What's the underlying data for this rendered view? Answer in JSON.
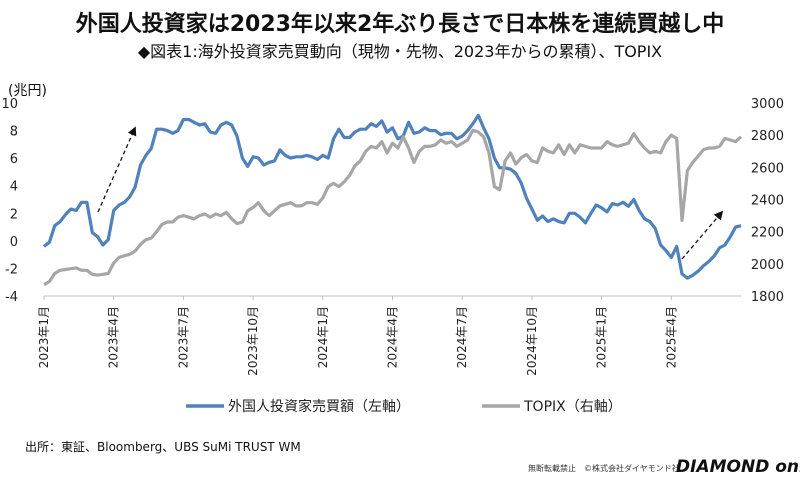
{
  "header": {
    "title": "外国人投資家は2023年以来2年ぶり長さで日本株を連続買越し中",
    "subtitle": "◆図表1:海外投資家売買動向（現物・先物、2023年からの累積）、TOPIX"
  },
  "footer": {
    "source": "出所：東証、Bloomberg、UBS SuMi TRUST WM",
    "credit": "無断転載禁止　©株式会社ダイヤモンド社",
    "logo": "DIAMOND online"
  },
  "chart_data": {
    "type": "line",
    "left_unit": "(兆円)",
    "x_ticks": [
      {
        "index": 0,
        "label": "2023年1月"
      },
      {
        "index": 13,
        "label": "2023年4月"
      },
      {
        "index": 26,
        "label": "2023年7月"
      },
      {
        "index": 39,
        "label": "2023年10月"
      },
      {
        "index": 52,
        "label": "2024年1月"
      },
      {
        "index": 65,
        "label": "2024年4月"
      },
      {
        "index": 78,
        "label": "2024年7月"
      },
      {
        "index": 91,
        "label": "2024年10月"
      },
      {
        "index": 104,
        "label": "2025年1月"
      },
      {
        "index": 117,
        "label": "2025年4月"
      }
    ],
    "y_left": {
      "min": -4,
      "max": 10,
      "ticks": [
        -4,
        -2,
        0,
        2,
        4,
        6,
        8,
        10
      ]
    },
    "y_right": {
      "min": 1800,
      "max": 3000,
      "ticks": [
        1800,
        2000,
        2200,
        2400,
        2600,
        2800,
        3000
      ]
    },
    "series": [
      {
        "name": "外国人投資家売買額（左軸）",
        "axis": "left",
        "color": "#4f81bd",
        "values": [
          -0.4,
          -0.1,
          1.1,
          1.4,
          1.9,
          2.3,
          2.2,
          2.8,
          2.8,
          0.6,
          0.3,
          -0.3,
          0.1,
          2.2,
          2.6,
          2.8,
          3.2,
          3.9,
          5.5,
          6.2,
          6.7,
          8.1,
          8.1,
          8.0,
          7.8,
          8.0,
          8.8,
          8.8,
          8.6,
          8.4,
          8.5,
          7.9,
          7.8,
          8.4,
          8.6,
          8.4,
          7.6,
          6.0,
          5.4,
          6.1,
          6.0,
          5.5,
          5.7,
          5.8,
          6.6,
          6.2,
          6.0,
          6.1,
          6.1,
          6.2,
          6.1,
          5.9,
          6.2,
          6.0,
          7.4,
          8.1,
          7.5,
          7.5,
          7.9,
          8.1,
          8.1,
          8.5,
          8.3,
          8.7,
          7.9,
          8.2,
          7.4,
          7.6,
          8.6,
          7.8,
          7.9,
          8.2,
          8.0,
          8.0,
          7.7,
          7.8,
          7.8,
          7.4,
          7.6,
          8.0,
          8.5,
          9.1,
          8.2,
          7.4,
          6.0,
          5.3,
          5.3,
          5.2,
          4.9,
          4.2,
          3.1,
          2.3,
          1.5,
          1.8,
          1.4,
          1.6,
          1.4,
          1.3,
          2.0,
          2.0,
          1.7,
          1.3,
          2.0,
          2.6,
          2.4,
          2.1,
          2.7,
          2.6,
          2.8,
          2.5,
          3.0,
          2.2,
          1.6,
          1.4,
          0.9,
          -0.3,
          -0.7,
          -1.2,
          -0.4,
          -2.4,
          -2.7,
          -2.5,
          -2.2,
          -1.8,
          -1.5,
          -1.1,
          -0.5,
          -0.3,
          0.3,
          1.0,
          1.1
        ]
      },
      {
        "name": "TOPIX（右軸）",
        "axis": "right",
        "color": "#a6a6a6",
        "values": [
          1870,
          1890,
          1940,
          1960,
          1965,
          1970,
          1975,
          1960,
          1960,
          1935,
          1930,
          1935,
          1940,
          2005,
          2040,
          2050,
          2060,
          2080,
          2120,
          2150,
          2160,
          2200,
          2245,
          2260,
          2260,
          2290,
          2300,
          2290,
          2280,
          2300,
          2310,
          2290,
          2310,
          2300,
          2320,
          2280,
          2250,
          2260,
          2330,
          2350,
          2380,
          2330,
          2300,
          2330,
          2360,
          2370,
          2380,
          2360,
          2360,
          2380,
          2380,
          2370,
          2410,
          2480,
          2500,
          2480,
          2510,
          2550,
          2610,
          2640,
          2700,
          2730,
          2720,
          2760,
          2690,
          2750,
          2720,
          2790,
          2720,
          2630,
          2700,
          2730,
          2730,
          2740,
          2770,
          2750,
          2760,
          2730,
          2750,
          2770,
          2830,
          2820,
          2790,
          2690,
          2480,
          2460,
          2640,
          2690,
          2620,
          2660,
          2680,
          2640,
          2630,
          2720,
          2700,
          2690,
          2740,
          2680,
          2740,
          2690,
          2740,
          2730,
          2720,
          2720,
          2720,
          2760,
          2740,
          2730,
          2740,
          2750,
          2810,
          2760,
          2720,
          2690,
          2700,
          2690,
          2760,
          2800,
          2780,
          2270,
          2580,
          2630,
          2670,
          2710,
          2720,
          2720,
          2730,
          2780,
          2770,
          2760,
          2790
        ]
      }
    ],
    "annotations": [
      "arrow-up-2023",
      "arrow-up-2025"
    ]
  }
}
